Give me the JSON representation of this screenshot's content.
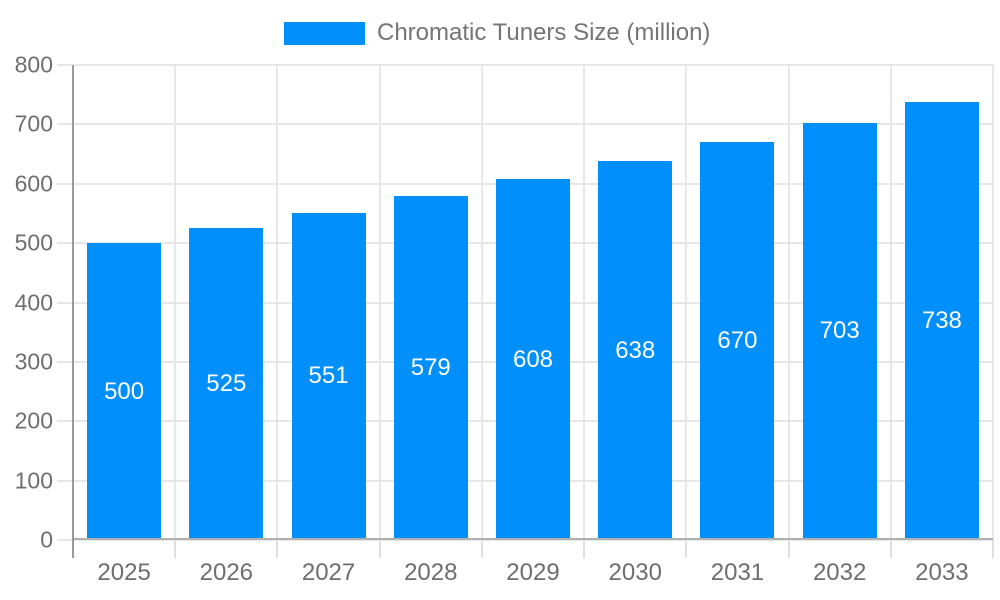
{
  "legend": {
    "label": "Chromatic Tuners Size (million)"
  },
  "chart_data": {
    "type": "bar",
    "title": "Chromatic Tuners Size (million)",
    "series_name": "Chromatic Tuners Size (million)",
    "categories": [
      "2025",
      "2026",
      "2027",
      "2028",
      "2029",
      "2030",
      "2031",
      "2032",
      "2033"
    ],
    "values": [
      500,
      525,
      551,
      579,
      608,
      638,
      670,
      703,
      738
    ],
    "value_labels": [
      "500",
      "525",
      "551",
      "579",
      "608",
      "638",
      "670",
      "703",
      "738"
    ],
    "xlabel": "",
    "ylabel": "",
    "ylim": [
      0,
      800
    ],
    "yticks": [
      0,
      100,
      200,
      300,
      400,
      500,
      600,
      700,
      800
    ],
    "ytick_labels": [
      "0",
      "100",
      "200",
      "300",
      "400",
      "500",
      "600",
      "700",
      "800"
    ],
    "grid": true,
    "legend_position": "top-center",
    "bar_label_position": "inside-middle",
    "colors": {
      "bar": "#008FFB",
      "bar_label": "#FFFFFF",
      "axis_label": "#6E6E6E",
      "legend_text": "#757575",
      "gridline": "#E7E7E7",
      "bottom_axis_line": "#B0B0B0",
      "y_axis_line": "#9B9B9B",
      "tick": "#DFDFDF",
      "background": "#FFFFFF"
    }
  }
}
